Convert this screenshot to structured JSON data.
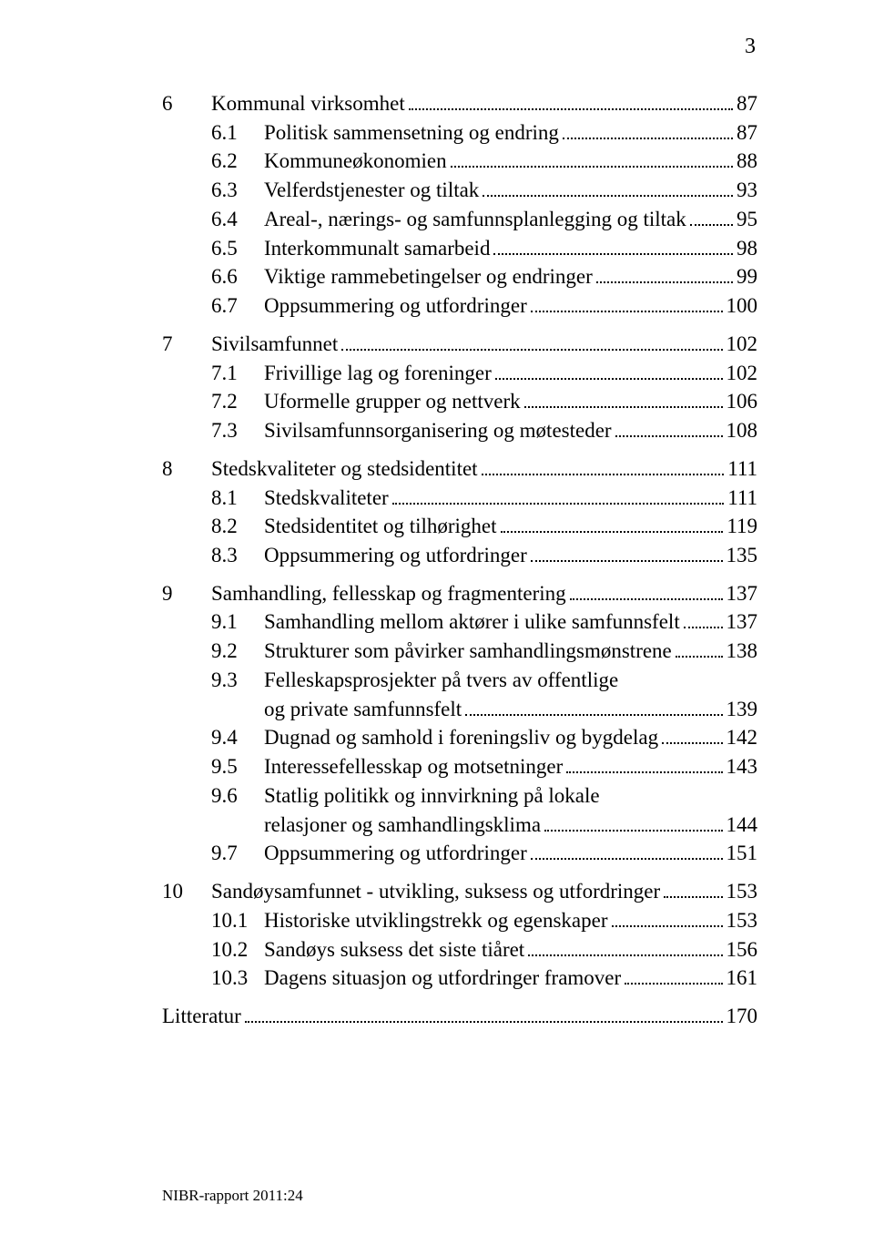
{
  "pageCornerNumber": "3",
  "footer": "NIBR-rapport 2011:24",
  "sections": [
    {
      "num": "6",
      "title": "Kommunal virksomhet",
      "page": "87",
      "subs": [
        {
          "num": "6.1",
          "title": "Politisk sammensetning og endring",
          "page": "87"
        },
        {
          "num": "6.2",
          "title": "Kommuneøkonomien",
          "page": "88"
        },
        {
          "num": "6.3",
          "title": "Velferdstjenester og tiltak",
          "page": "93"
        },
        {
          "num": "6.4",
          "title": "Areal-, nærings- og samfunnsplanlegging og tiltak",
          "page": "95"
        },
        {
          "num": "6.5",
          "title": "Interkommunalt samarbeid",
          "page": "98"
        },
        {
          "num": "6.6",
          "title": "Viktige rammebetingelser og endringer",
          "page": "99"
        },
        {
          "num": "6.7",
          "title": "Oppsummering og utfordringer",
          "page": "100"
        }
      ]
    },
    {
      "num": "7",
      "title": "Sivilsamfunnet",
      "page": "102",
      "subs": [
        {
          "num": "7.1",
          "title": "Frivillige lag og foreninger",
          "page": "102"
        },
        {
          "num": "7.2",
          "title": "Uformelle grupper og nettverk",
          "page": "106"
        },
        {
          "num": "7.3",
          "title": "Sivilsamfunnsorganisering og møtesteder",
          "page": "108"
        }
      ]
    },
    {
      "num": "8",
      "title": "Stedskvaliteter og stedsidentitet",
      "page": "111",
      "subs": [
        {
          "num": "8.1",
          "title": "Stedskvaliteter",
          "page": "111"
        },
        {
          "num": "8.2",
          "title": "Stedsidentitet og tilhørighet",
          "page": "119"
        },
        {
          "num": "8.3",
          "title": "Oppsummering og utfordringer",
          "page": "135"
        }
      ]
    },
    {
      "num": "9",
      "title": "Samhandling, fellesskap og fragmentering",
      "page": "137",
      "subs": [
        {
          "num": "9.1",
          "title": "Samhandling mellom aktører i ulike samfunnsfelt",
          "page": "137"
        },
        {
          "num": "9.2",
          "title": "Strukturer som påvirker samhandlingsmønstrene",
          "page": "138"
        },
        {
          "num": "9.3",
          "title": "Felleskapsprosjekter på tvers av offentlige",
          "cont": "og private samfunnsfelt",
          "page": "139"
        },
        {
          "num": "9.4",
          "title": "Dugnad og samhold i foreningsliv og bygdelag",
          "page": "142"
        },
        {
          "num": "9.5",
          "title": "Interessefellesskap og motsetninger",
          "page": "143"
        },
        {
          "num": "9.6",
          "title": "Statlig politikk og innvirkning på lokale",
          "cont": "relasjoner og samhandlingsklima",
          "page": "144"
        },
        {
          "num": "9.7",
          "title": "Oppsummering og utfordringer",
          "page": "151"
        }
      ]
    },
    {
      "num": "10",
      "title": "Sandøysamfunnet  - utvikling, suksess og utfordringer",
      "page": "153",
      "subs": [
        {
          "num": "10.1",
          "title": "Historiske utviklingstrekk og egenskaper",
          "page": "153"
        },
        {
          "num": "10.2",
          "title": "Sandøys suksess det siste tiåret",
          "page": "156"
        },
        {
          "num": "10.3",
          "title": "Dagens situasjon og utfordringer framover",
          "page": "161"
        }
      ]
    }
  ],
  "literature": {
    "title": "Litteratur",
    "page": "170"
  }
}
